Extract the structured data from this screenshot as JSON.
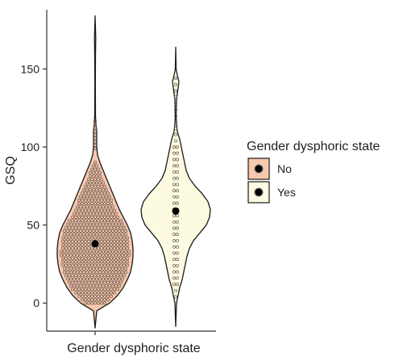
{
  "colors": {
    "no_fill": "#f7c8ae",
    "yes_fill": "#fcfae0",
    "outline": "#1a1a1a",
    "axis": "#333333",
    "text": "#222222"
  },
  "chart_data": {
    "type": "violin",
    "xlabel": "Gender dysphoric state",
    "ylabel": "GSQ",
    "ylim": [
      -18,
      188
    ],
    "yticks": [
      0,
      50,
      100,
      150
    ],
    "ytick_labels": [
      "0",
      "50",
      "100",
      "150"
    ],
    "grid": false,
    "legend": {
      "title": "Gender dysphoric state",
      "placement": "right",
      "entries": [
        {
          "label": "No",
          "color": "#f7c8ae"
        },
        {
          "label": "Yes",
          "color": "#fcfae0"
        }
      ]
    },
    "series": [
      {
        "name": "No",
        "y_range": [
          -16,
          184
        ],
        "center_point": 38,
        "width_profile": [
          [
            -16,
            0
          ],
          [
            -5,
            2
          ],
          [
            0,
            18
          ],
          [
            5,
            28
          ],
          [
            10,
            35
          ],
          [
            15,
            40
          ],
          [
            20,
            44
          ],
          [
            25,
            46
          ],
          [
            30,
            47
          ],
          [
            35,
            47
          ],
          [
            40,
            46
          ],
          [
            45,
            44
          ],
          [
            50,
            40
          ],
          [
            55,
            35
          ],
          [
            60,
            30
          ],
          [
            65,
            26
          ],
          [
            70,
            22
          ],
          [
            75,
            18
          ],
          [
            80,
            14
          ],
          [
            85,
            10
          ],
          [
            90,
            6
          ],
          [
            95,
            3
          ],
          [
            100,
            2
          ],
          [
            110,
            2
          ],
          [
            115,
            1
          ],
          [
            120,
            0.5
          ],
          [
            140,
            0.3
          ],
          [
            160,
            0.5
          ],
          [
            170,
            0.8
          ],
          [
            184,
            0
          ]
        ]
      },
      {
        "name": "Yes",
        "y_range": [
          -15,
          164
        ],
        "center_point": 59,
        "width_profile": [
          [
            -15,
            0
          ],
          [
            0,
            1
          ],
          [
            5,
            3
          ],
          [
            10,
            5
          ],
          [
            15,
            8
          ],
          [
            20,
            10
          ],
          [
            25,
            12
          ],
          [
            30,
            14
          ],
          [
            35,
            17
          ],
          [
            40,
            22
          ],
          [
            45,
            30
          ],
          [
            50,
            38
          ],
          [
            55,
            42
          ],
          [
            60,
            43
          ],
          [
            65,
            40
          ],
          [
            70,
            33
          ],
          [
            75,
            24
          ],
          [
            80,
            17
          ],
          [
            85,
            13
          ],
          [
            90,
            11
          ],
          [
            95,
            9
          ],
          [
            100,
            7
          ],
          [
            105,
            5
          ],
          [
            110,
            2
          ],
          [
            115,
            1
          ],
          [
            120,
            0.5
          ],
          [
            130,
            1
          ],
          [
            138,
            3
          ],
          [
            142,
            4
          ],
          [
            146,
            2
          ],
          [
            150,
            0.5
          ],
          [
            164,
            0
          ]
        ]
      }
    ]
  }
}
